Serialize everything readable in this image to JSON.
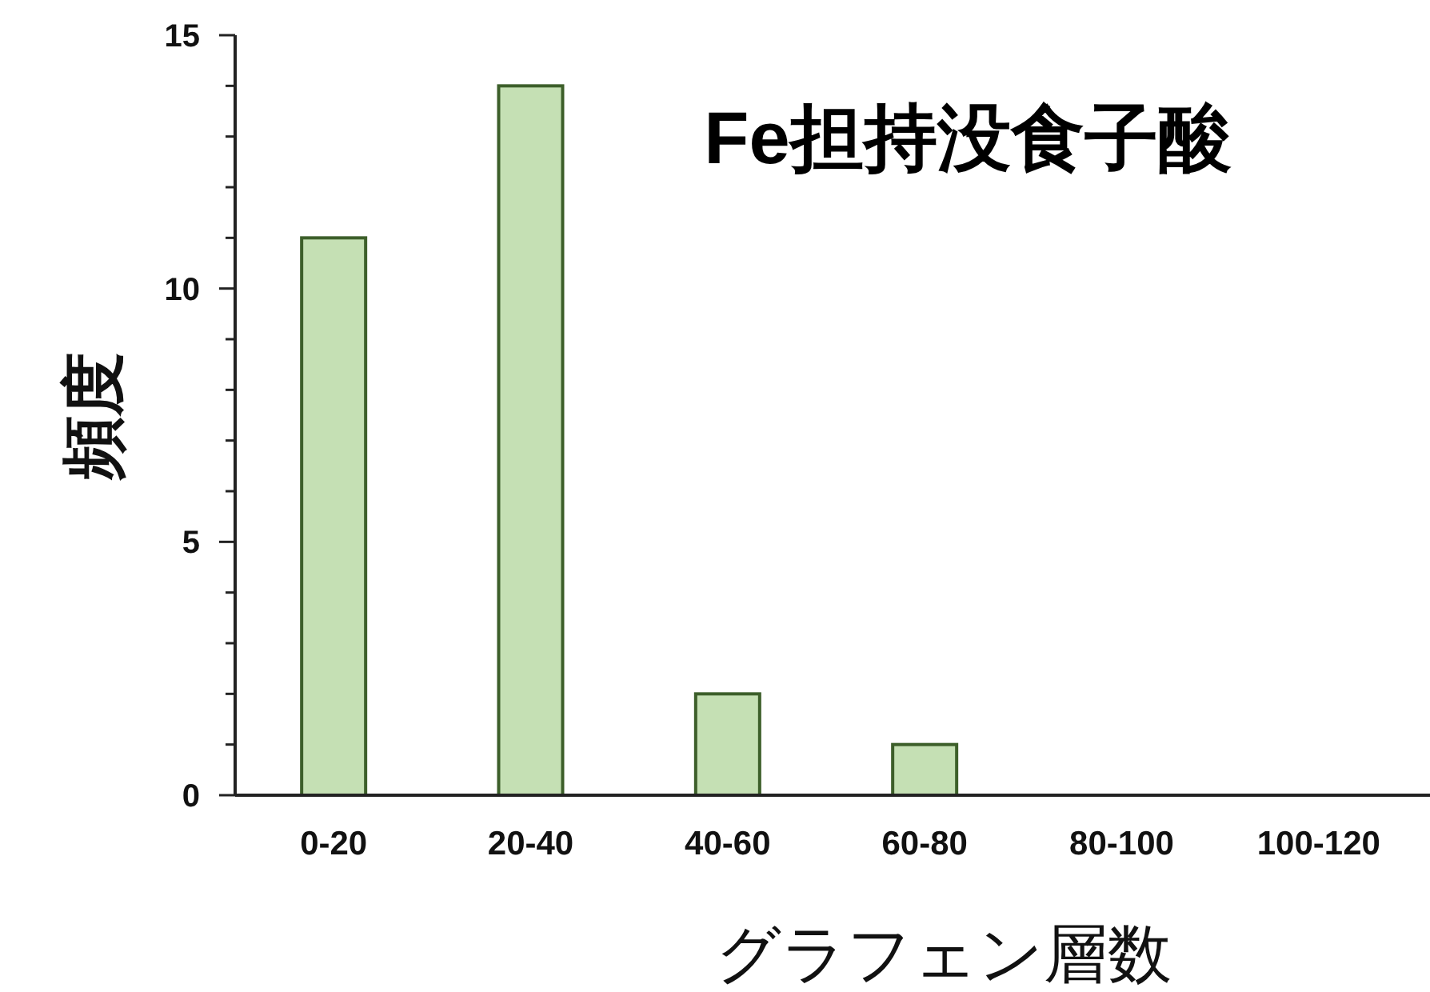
{
  "chart_data": {
    "type": "bar",
    "title": "Fe担持没食子酸",
    "xlabel": "グラフェン層数",
    "ylabel": "頻度",
    "categories": [
      "0-20",
      "20-40",
      "40-60",
      "60-80",
      "80-100",
      "100-120"
    ],
    "values": [
      11,
      14,
      2,
      1,
      0,
      0
    ],
    "color": "#c5e0b4",
    "ylim": [
      0,
      15
    ],
    "yticks": [
      0,
      {
        "value": 1,
        "label": null
      },
      {
        "value": 2,
        "label": null
      },
      {
        "value": 3,
        "label": null
      },
      {
        "value": 4,
        "label": null
      },
      5,
      {
        "value": 6,
        "label": null
      },
      {
        "value": 7,
        "label": null
      },
      {
        "value": 8,
        "label": null
      },
      {
        "value": 9,
        "label": null
      },
      10,
      {
        "value": 11,
        "label": null
      },
      {
        "value": 12,
        "label": null
      },
      {
        "value": 13,
        "label": null
      },
      {
        "value": 14,
        "label": null
      },
      15
    ],
    "grid": false
  }
}
